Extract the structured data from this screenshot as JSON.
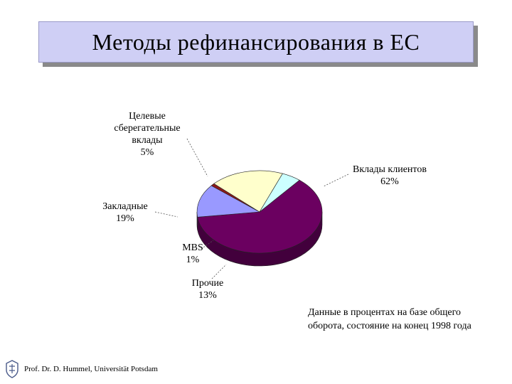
{
  "title": "Методы рефинансирования в ЕС",
  "note": {
    "line1": "Данные в процентах на базе общего",
    "line2": "оборота, состояние на конец  1998 года"
  },
  "footer": "Prof. Dr. D. Hummel, Universität Potsdam",
  "chart_data": {
    "type": "pie",
    "slices": [
      {
        "label_lines": [
          "Вклады клиентов"
        ],
        "value_label": "62%",
        "value": 62,
        "color": "#6b0060"
      },
      {
        "label_lines": [
          "Прочие"
        ],
        "value_label": "13%",
        "value": 13,
        "color": "#9999ff"
      },
      {
        "label_lines": [
          "MBS"
        ],
        "value_label": "1%",
        "value": 1,
        "color": "#8b1a1a"
      },
      {
        "label_lines": [
          "Закладные"
        ],
        "value_label": "19%",
        "value": 19,
        "color": "#ffffcc"
      },
      {
        "label_lines": [
          "Целевые",
          "сберегательные",
          "вклады"
        ],
        "value_label": "5%",
        "value": 5,
        "color": "#ccffff"
      }
    ]
  }
}
